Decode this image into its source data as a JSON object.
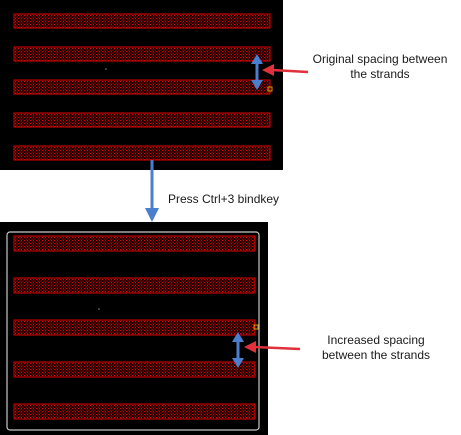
{
  "top_panel": {
    "annotation_line1": "Original spacing between",
    "annotation_line2": "the strands",
    "strand_count": 5
  },
  "step": {
    "label": "Press Ctrl+3 bindkey"
  },
  "bottom_panel": {
    "annotation_line1": "Increased spacing",
    "annotation_line2": "between the strands",
    "strand_count": 5
  },
  "colors": {
    "canvas": "#000000",
    "strand": "#e00000",
    "boundary": "#c8c8c8",
    "spacing_arrow": "#4a7fd0",
    "callout_arrow": "#e0303a",
    "flow_arrow": "#4a7fd0",
    "marker": "#e0a000"
  }
}
